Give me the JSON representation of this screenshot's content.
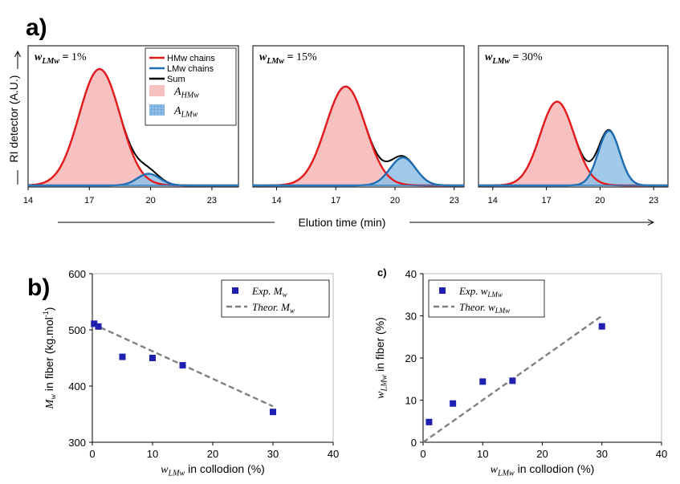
{
  "panel_labels": {
    "a": "a)",
    "b": "b)",
    "c": "c)"
  },
  "shared": {
    "y_axis_label": "RI detector (A.U.)",
    "x_axis_label": "Elution time (min)"
  },
  "colors": {
    "hmw_line": "#e41a1c",
    "lmw_line": "#1f6db3",
    "sum_line": "#000000",
    "hmw_fill": "#f7c1c1",
    "lmw_fill": "#8fbfe6",
    "marker": "#1f1fb0",
    "theory": "#808080"
  },
  "chart_data": [
    {
      "type": "area",
      "id": "gpc-1",
      "annotation": {
        "var": "w",
        "sub": "LMw",
        "eq": " = ",
        "value": "1%"
      },
      "xlim": [
        14,
        24.3
      ],
      "xticks": [
        "14",
        "17",
        "20",
        "23"
      ],
      "xtick_values": [
        14,
        17,
        20,
        23
      ],
      "series": [
        {
          "name": "HMw chains",
          "shape": "gaussian",
          "center": 17.5,
          "sigma": 1.0,
          "height": 1.0
        },
        {
          "name": "LMw chains",
          "shape": "gaussian",
          "center": 19.9,
          "sigma": 0.55,
          "height": 0.1
        },
        {
          "name": "Sum",
          "shape": "sum"
        }
      ],
      "legend": {
        "position": "top-center",
        "entries": [
          {
            "label": "HMw chains",
            "kind": "line",
            "color": "#e41a1c"
          },
          {
            "label": "LMw chains",
            "kind": "line",
            "color": "#1f6db3"
          },
          {
            "label": "Sum",
            "kind": "line",
            "color": "#000000"
          },
          {
            "label_var": "A",
            "label_sub": "HMw",
            "kind": "fill",
            "color": "#f7c1c1"
          },
          {
            "label_var": "A",
            "label_sub": "LMw",
            "kind": "fill-grid",
            "color": "#8fbfe6"
          }
        ]
      }
    },
    {
      "type": "area",
      "id": "gpc-15",
      "annotation": {
        "var": "w",
        "sub": "LMw",
        "eq": " = ",
        "value": "15%"
      },
      "xlim": [
        12.8,
        23.5
      ],
      "xticks": [
        "14",
        "17",
        "20",
        "23"
      ],
      "xtick_values": [
        14,
        17,
        20,
        23
      ],
      "series": [
        {
          "name": "HMw chains",
          "shape": "gaussian",
          "center": 17.5,
          "sigma": 1.0,
          "height": 0.85
        },
        {
          "name": "LMw chains",
          "shape": "gaussian",
          "center": 20.4,
          "sigma": 0.65,
          "height": 0.24
        },
        {
          "name": "Sum",
          "shape": "sum"
        }
      ]
    },
    {
      "type": "area",
      "id": "gpc-30",
      "annotation": {
        "var": "w",
        "sub": "LMw",
        "eq": " = ",
        "value": "30%"
      },
      "xlim": [
        13.2,
        23.8
      ],
      "xticks": [
        "14",
        "17",
        "20",
        "23"
      ],
      "xtick_values": [
        14,
        17,
        20,
        23
      ],
      "series": [
        {
          "name": "HMw chains",
          "shape": "gaussian",
          "center": 17.6,
          "sigma": 0.95,
          "height": 0.72
        },
        {
          "name": "LMw chains",
          "shape": "gaussian",
          "center": 20.5,
          "sigma": 0.6,
          "height": 0.47
        },
        {
          "name": "Sum",
          "shape": "sum"
        }
      ]
    },
    {
      "type": "scatter",
      "id": "mw-fiber",
      "xlabel": {
        "var": "w",
        "sub": "LMw",
        "text": " in collodion (%)"
      },
      "ylabel": {
        "var": "M",
        "sub": "w",
        "text": " in fiber (kg.mol",
        "sup": "-1",
        "close": ")"
      },
      "xlim": [
        0,
        40
      ],
      "ylim": [
        300,
        600
      ],
      "xticks": [
        0,
        10,
        20,
        30,
        40
      ],
      "yticks": [
        300,
        400,
        500,
        600
      ],
      "series": [
        {
          "name": "Exp.",
          "name_var": "M",
          "name_sub": "w",
          "kind": "marker",
          "x": [
            0.3,
            1,
            5,
            10,
            15,
            30
          ],
          "y": [
            511,
            506,
            452,
            450,
            437,
            354
          ]
        },
        {
          "name": "Theor.",
          "name_var": "M",
          "name_sub": "w",
          "kind": "dashed",
          "x": [
            0,
            30
          ],
          "y": [
            511,
            364
          ]
        }
      ],
      "legend": {
        "position": "top-right"
      }
    },
    {
      "type": "scatter",
      "id": "wlmw-fiber",
      "xlabel": {
        "var": "w",
        "sub": "LMw",
        "text": " in collodion (%)"
      },
      "ylabel": {
        "var": "w",
        "sub": "LMw",
        "text": " in fiber (%)"
      },
      "xlim": [
        0,
        40
      ],
      "ylim": [
        0,
        40
      ],
      "xticks": [
        0,
        10,
        20,
        30,
        40
      ],
      "yticks": [
        0,
        10,
        20,
        30,
        40
      ],
      "series": [
        {
          "name": "Exp.",
          "name_var": "w",
          "name_sub": "LMw",
          "kind": "marker",
          "x": [
            1,
            5,
            10,
            15,
            30
          ],
          "y": [
            4.8,
            9.2,
            14.4,
            14.6,
            27.5
          ]
        },
        {
          "name": "Theor.",
          "name_var": "w",
          "name_sub": "LMw",
          "kind": "dashed",
          "x": [
            0,
            30
          ],
          "y": [
            0,
            30
          ]
        }
      ],
      "legend": {
        "position": "top-left"
      }
    }
  ]
}
